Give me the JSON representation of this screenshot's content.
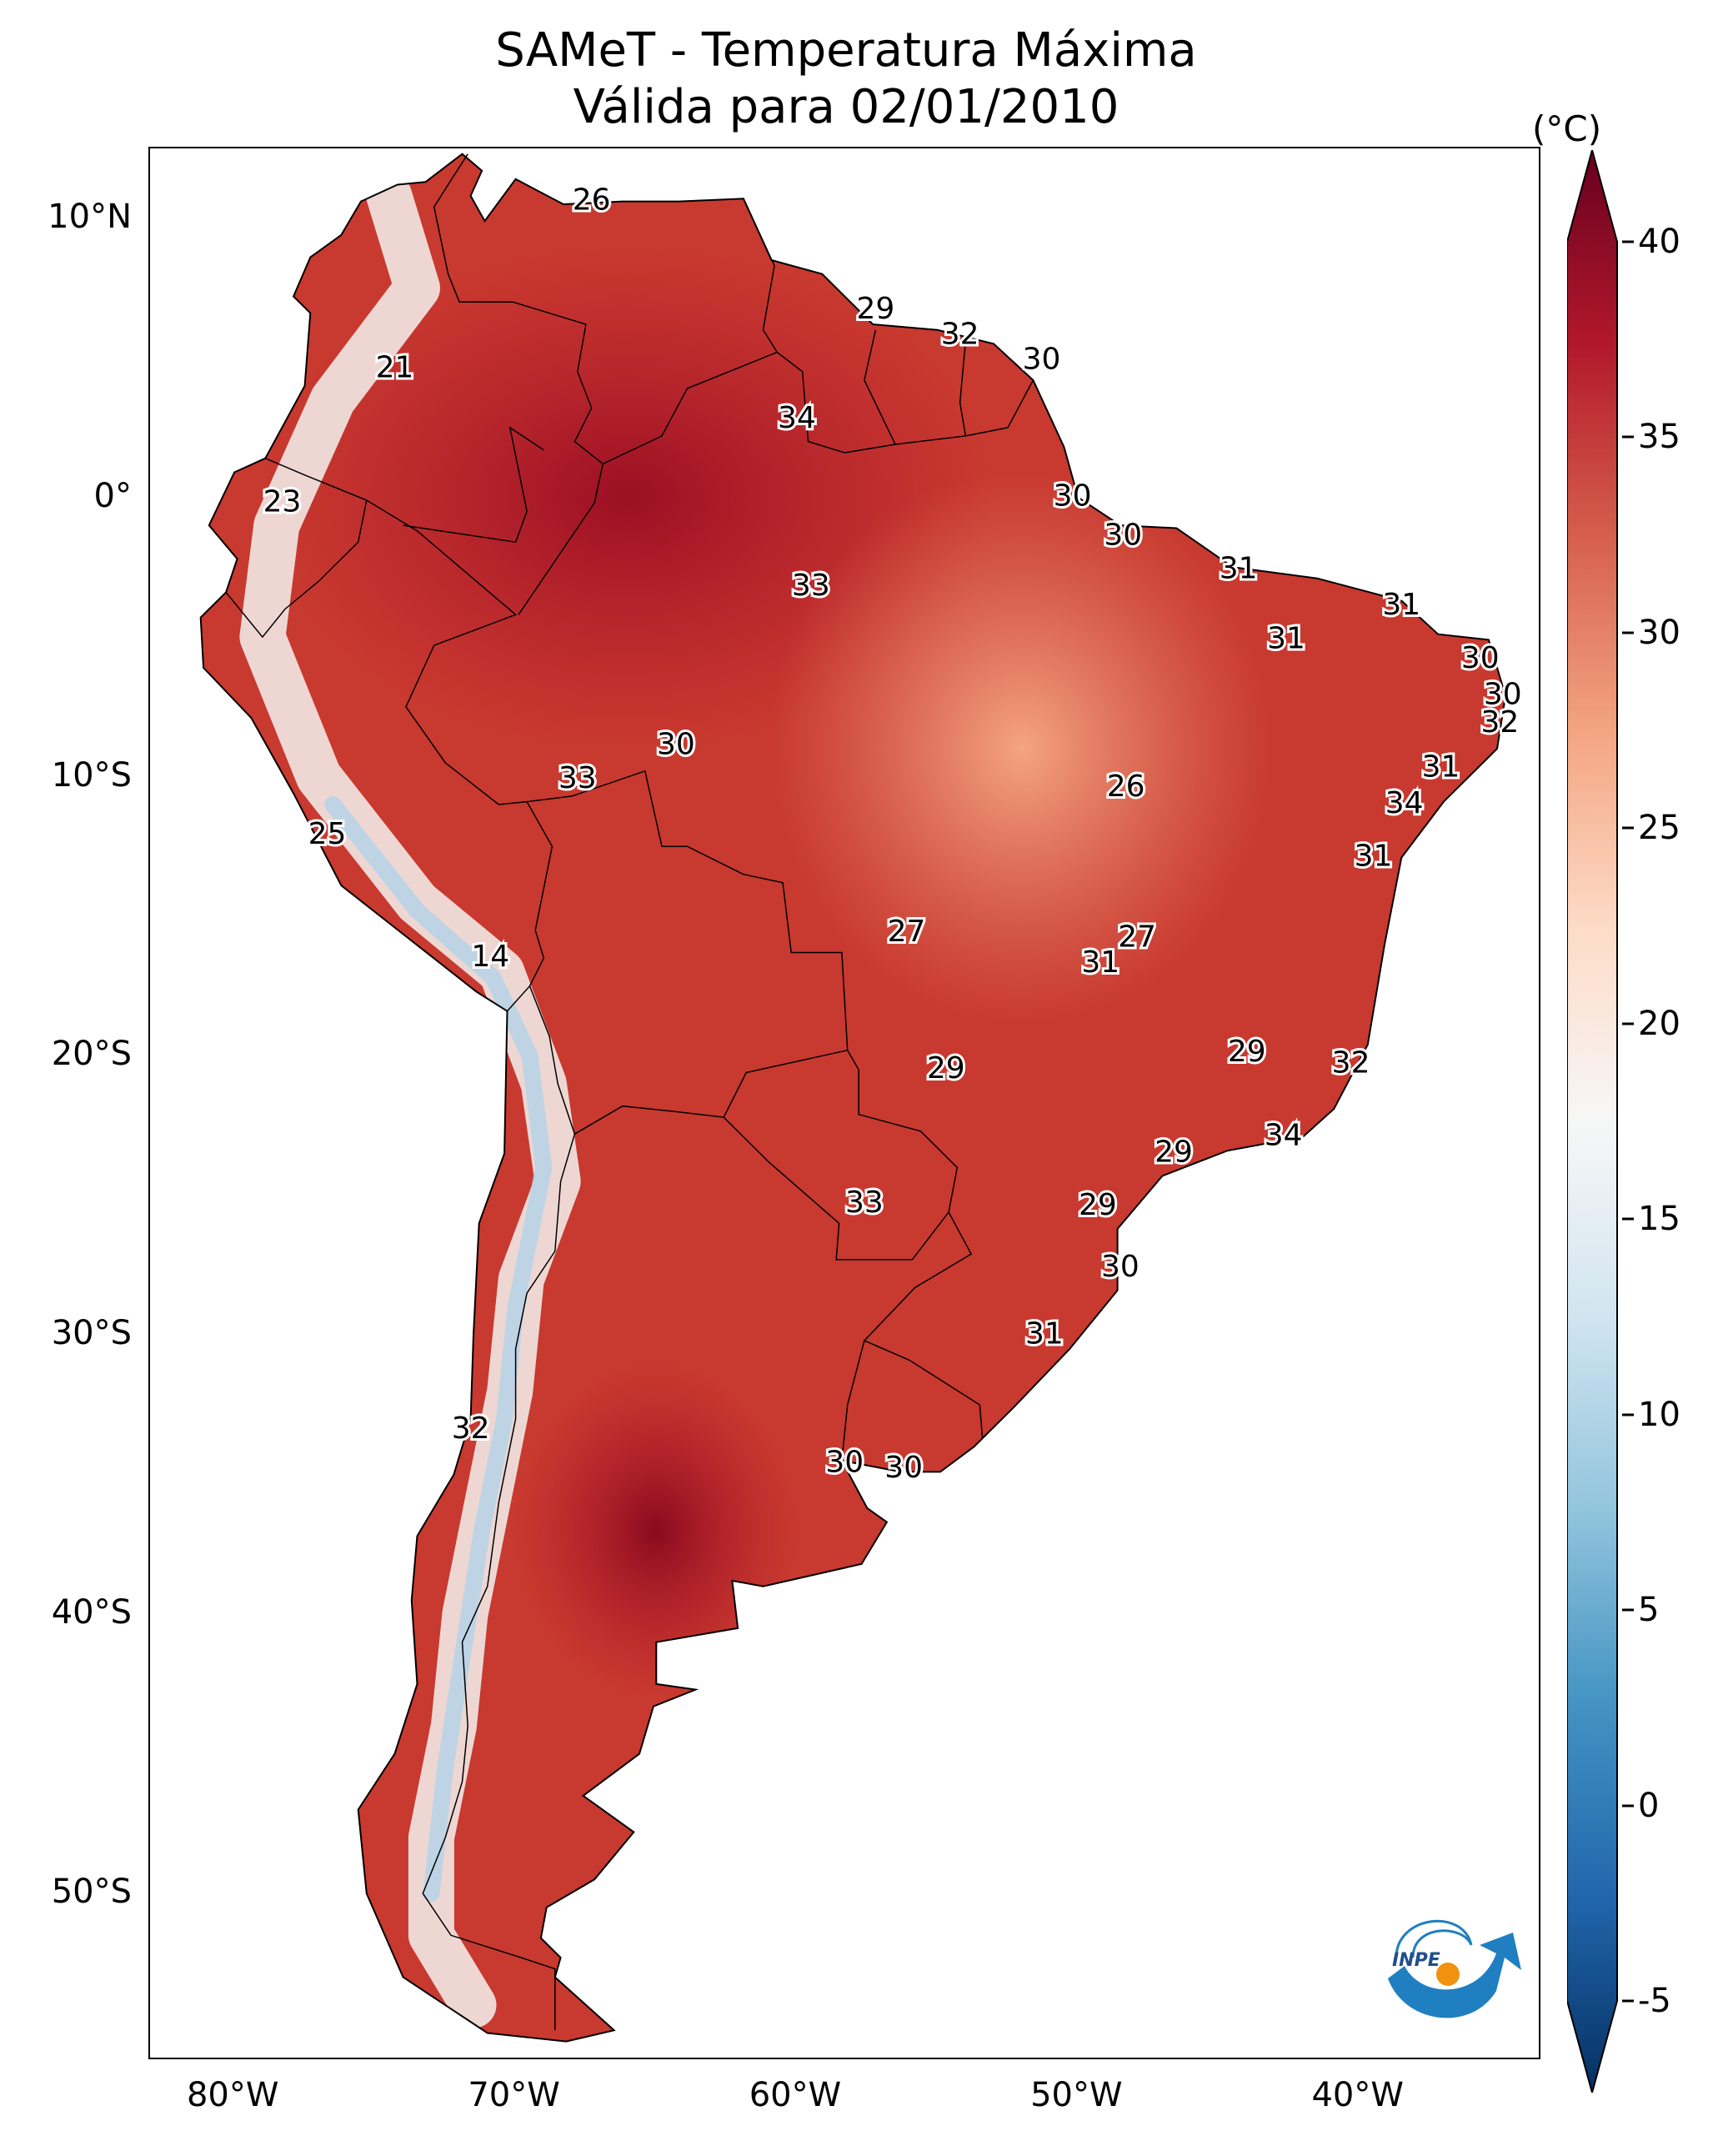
{
  "title": {
    "line1": "SAMeT - Temperatura Máxima",
    "line2": "Válida para 02/01/2010"
  },
  "axes": {
    "lat_labels": [
      "10°N",
      "0°",
      "10°S",
      "20°S",
      "30°S",
      "40°S",
      "50°S"
    ],
    "lon_labels": [
      "80°W",
      "70°W",
      "60°W",
      "50°W",
      "40°W"
    ],
    "lat_values": [
      10,
      0,
      -10,
      -20,
      -30,
      -40,
      -50
    ],
    "lon_values": [
      -80,
      -70,
      -60,
      -50,
      -40
    ],
    "lon_range": [
      -83,
      -33.5
    ],
    "lat_range": [
      -56,
      12.5
    ]
  },
  "colorbar": {
    "unit": "(°C)",
    "ticks": [
      "40",
      "35",
      "30",
      "25",
      "20",
      "15",
      "10",
      "5",
      "0",
      "-5"
    ],
    "tick_values": [
      40,
      35,
      30,
      25,
      20,
      15,
      10,
      5,
      0,
      -5
    ],
    "range": [
      -5,
      40
    ],
    "colors": [
      "#053061",
      "#2166ac",
      "#4393c3",
      "#92c5de",
      "#d1e5f0",
      "#f7f7f7",
      "#fddbc7",
      "#f4a582",
      "#d6604d",
      "#b2182b",
      "#67001f"
    ]
  },
  "stations": [
    {
      "v": "26",
      "lon": -67.3,
      "lat": 10.6
    },
    {
      "v": "21",
      "lon": -74.3,
      "lat": 4.6
    },
    {
      "v": "29",
      "lon": -57.2,
      "lat": 6.7
    },
    {
      "v": "32",
      "lon": -54.2,
      "lat": 5.8
    },
    {
      "v": "30",
      "lon": -51.3,
      "lat": 4.9
    },
    {
      "v": "34",
      "lon": -60.0,
      "lat": 2.8
    },
    {
      "v": "23",
      "lon": -78.3,
      "lat": -0.2
    },
    {
      "v": "30",
      "lon": -50.2,
      "lat": 0.0
    },
    {
      "v": "30",
      "lon": -48.4,
      "lat": -1.4
    },
    {
      "v": "33",
      "lon": -59.5,
      "lat": -3.2
    },
    {
      "v": "31",
      "lon": -44.3,
      "lat": -2.6
    },
    {
      "v": "31",
      "lon": -38.5,
      "lat": -3.9
    },
    {
      "v": "31",
      "lon": -42.6,
      "lat": -5.1
    },
    {
      "v": "30",
      "lon": -35.7,
      "lat": -5.8
    },
    {
      "v": "30",
      "lon": -34.9,
      "lat": -7.1
    },
    {
      "v": "32",
      "lon": -35.0,
      "lat": -8.1
    },
    {
      "v": "31",
      "lon": -37.1,
      "lat": -9.7
    },
    {
      "v": "34",
      "lon": -38.4,
      "lat": -11.0
    },
    {
      "v": "31",
      "lon": -39.5,
      "lat": -12.9
    },
    {
      "v": "30",
      "lon": -64.3,
      "lat": -8.9
    },
    {
      "v": "33",
      "lon": -67.8,
      "lat": -10.1
    },
    {
      "v": "26",
      "lon": -48.3,
      "lat": -10.4
    },
    {
      "v": "25",
      "lon": -76.7,
      "lat": -12.1
    },
    {
      "v": "14",
      "lon": -70.9,
      "lat": -16.5
    },
    {
      "v": "27",
      "lon": -56.1,
      "lat": -15.6
    },
    {
      "v": "27",
      "lon": -47.9,
      "lat": -15.8
    },
    {
      "v": "31",
      "lon": -49.2,
      "lat": -16.7
    },
    {
      "v": "29",
      "lon": -54.7,
      "lat": -20.5
    },
    {
      "v": "29",
      "lon": -44.0,
      "lat": -19.9
    },
    {
      "v": "32",
      "lon": -40.3,
      "lat": -20.3
    },
    {
      "v": "34",
      "lon": -42.7,
      "lat": -22.9
    },
    {
      "v": "29",
      "lon": -46.6,
      "lat": -23.5
    },
    {
      "v": "33",
      "lon": -57.6,
      "lat": -25.3
    },
    {
      "v": "29",
      "lon": -49.3,
      "lat": -25.4
    },
    {
      "v": "30",
      "lon": -48.5,
      "lat": -27.6
    },
    {
      "v": "31",
      "lon": -51.2,
      "lat": -30.0
    },
    {
      "v": "32",
      "lon": -71.6,
      "lat": -33.4
    },
    {
      "v": "30",
      "lon": -58.3,
      "lat": -34.6
    },
    {
      "v": "30",
      "lon": -56.2,
      "lat": -34.8
    }
  ]
}
